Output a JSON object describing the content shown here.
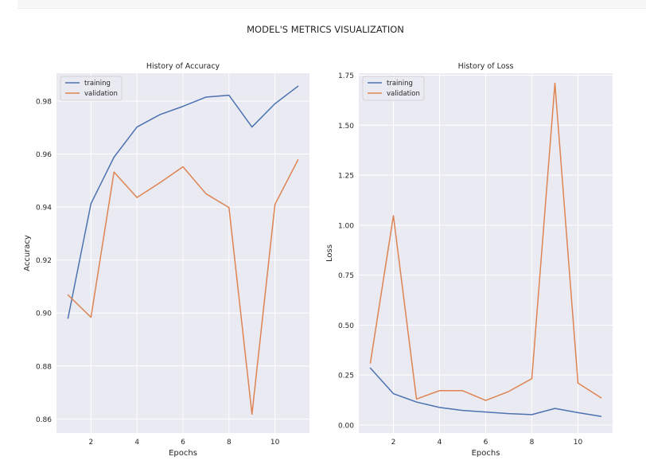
{
  "figure": {
    "suptitle": "MODEL'S METRICS VISUALIZATION"
  },
  "colors": {
    "training": "#4c72b0",
    "validation": "#dd8452",
    "panel": "#eaeaf2",
    "grid": "#ffffff",
    "text": "#262626"
  },
  "chart_data": [
    {
      "type": "line",
      "title": "History of Accuracy",
      "xlabel": "Epochs",
      "ylabel": "Accuracy",
      "x": [
        1,
        2,
        3,
        4,
        5,
        6,
        7,
        8,
        9,
        10,
        11
      ],
      "series": [
        {
          "name": "training",
          "values": [
            0.898,
            0.9413,
            0.9588,
            0.9702,
            0.9749,
            0.978,
            0.9815,
            0.9822,
            0.9702,
            0.979,
            0.9856
          ]
        },
        {
          "name": "validation",
          "values": [
            0.9068,
            0.8984,
            0.9532,
            0.9436,
            0.9492,
            0.9552,
            0.945,
            0.9398,
            0.8618,
            0.941,
            0.9578
          ]
        }
      ],
      "xlim": [
        0.5,
        11.5
      ],
      "ylim": [
        0.8547,
        0.9905
      ],
      "xticks": [
        2,
        4,
        6,
        8,
        10
      ],
      "yticks": [
        0.86,
        0.88,
        0.9,
        0.92,
        0.94,
        0.96,
        0.98
      ],
      "ytick_labels": [
        "0.86",
        "0.88",
        "0.90",
        "0.92",
        "0.94",
        "0.96",
        "0.98"
      ],
      "grid": true,
      "legend": "upper left"
    },
    {
      "type": "line",
      "title": "History of Loss",
      "xlabel": "Epochs",
      "ylabel": "Loss",
      "x": [
        1,
        2,
        3,
        4,
        5,
        6,
        7,
        8,
        9,
        10,
        11
      ],
      "series": [
        {
          "name": "training",
          "values": [
            0.285,
            0.157,
            0.115,
            0.088,
            0.073,
            0.065,
            0.057,
            0.052,
            0.083,
            0.062,
            0.043
          ]
        },
        {
          "name": "validation",
          "values": [
            0.31,
            1.047,
            0.13,
            0.172,
            0.172,
            0.123,
            0.168,
            0.232,
            1.71,
            0.21,
            0.136
          ]
        }
      ],
      "xlim": [
        0.5,
        11.5
      ],
      "ylim": [
        -0.04,
        1.76
      ],
      "xticks": [
        2,
        4,
        6,
        8,
        10
      ],
      "yticks": [
        0,
        0.25,
        0.5,
        0.75,
        1.0,
        1.25,
        1.5,
        1.75
      ],
      "ytick_labels": [
        "0.00",
        "0.25",
        "0.50",
        "0.75",
        "1.00",
        "1.25",
        "1.50",
        "1.75"
      ],
      "grid": true,
      "legend": "upper left"
    }
  ]
}
